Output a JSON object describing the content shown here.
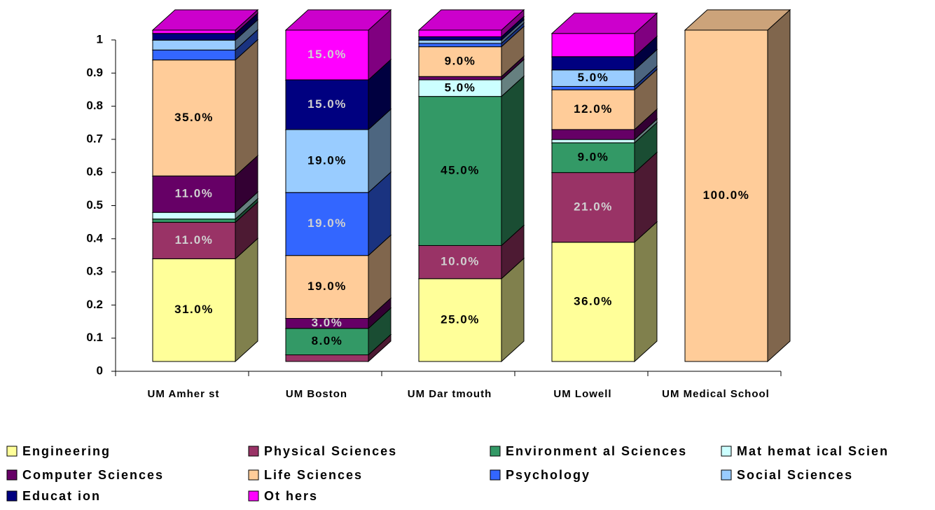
{
  "chart_data": {
    "type": "bar3d_stacked",
    "categories": [
      "UM Amher st",
      "UM Boston",
      "UM Dar tmouth",
      "UM Lowell",
      "UM Medical School"
    ],
    "series": [
      {
        "name": "Engineering",
        "color": "#FFFF99",
        "values": [
          0.31,
          0,
          0.25,
          0.36,
          0
        ],
        "value_labels": [
          "31.0%",
          null,
          "25.0%",
          "36.0%",
          null
        ]
      },
      {
        "name": "Physical Sciences",
        "color": "#993366",
        "values": [
          0.11,
          0.02,
          0.1,
          0.21,
          0
        ],
        "value_labels": [
          "11.0%",
          null,
          "10.0%",
          "21.0%",
          null
        ]
      },
      {
        "name": "Environment al Sciences",
        "color": "#339966",
        "values": [
          0.01,
          0.08,
          0.45,
          0.09,
          0
        ],
        "value_labels": [
          null,
          "8.0%",
          "45.0%",
          "9.0%",
          null
        ]
      },
      {
        "name": "Mat hemat ical Scien",
        "color": "#CCFFFF",
        "values": [
          0.02,
          0,
          0.05,
          0.01,
          0
        ],
        "value_labels": [
          null,
          null,
          "5.0%",
          null,
          null
        ]
      },
      {
        "name": "Computer Sciences",
        "color": "#660066",
        "values": [
          0.11,
          0.03,
          0.01,
          0.03,
          0
        ],
        "value_labels": [
          "11.0%",
          "3.0%",
          null,
          null,
          null
        ]
      },
      {
        "name": "Life Sciences",
        "color": "#FFCC99",
        "values": [
          0.35,
          0.19,
          0.09,
          0.12,
          1.0
        ],
        "value_labels": [
          "35.0%",
          "19.0%",
          "9.0%",
          "12.0%",
          "100.0%"
        ]
      },
      {
        "name": "Psychology",
        "color": "#3366FF",
        "values": [
          0.03,
          0.19,
          0.01,
          0.01,
          0
        ],
        "value_labels": [
          null,
          "19.0%",
          null,
          null,
          null
        ]
      },
      {
        "name": "Social Sciences",
        "color": "#99CCFF",
        "values": [
          0.03,
          0.19,
          0.01,
          0.05,
          0
        ],
        "value_labels": [
          null,
          "19.0%",
          null,
          "5.0%",
          null
        ]
      },
      {
        "name": "Educat ion",
        "color": "#000080",
        "values": [
          0.02,
          0.15,
          0.01,
          0.04,
          0
        ],
        "value_labels": [
          null,
          "15.0%",
          null,
          null,
          null
        ]
      },
      {
        "name": "Ot hers",
        "color": "#FF00FF",
        "values": [
          0.01,
          0.15,
          0.02,
          0.07,
          0
        ],
        "value_labels": [
          null,
          "15.0%",
          null,
          null,
          null
        ]
      }
    ],
    "ylim": [
      0,
      1
    ],
    "yticks": [
      0,
      0.1,
      0.2,
      0.3,
      0.4,
      0.5,
      0.6,
      0.7,
      0.8,
      0.9,
      1
    ],
    "legend": "bottom"
  }
}
